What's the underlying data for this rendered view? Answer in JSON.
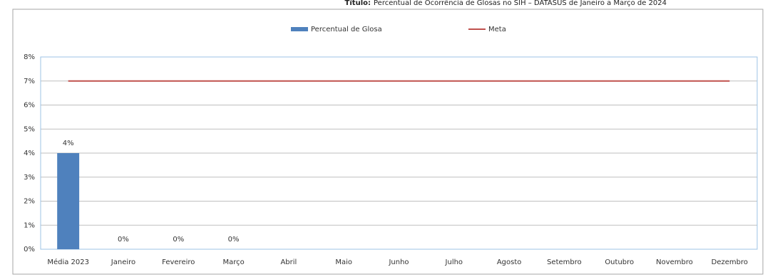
{
  "chart_data": {
    "type": "bar",
    "title_label": "Título:",
    "title": "Percentual de Ocorrência de Glosas no SIH – DATASUS de Janeiro a Março de 2024",
    "categories": [
      "Média 2023",
      "Janeiro",
      "Fevereiro",
      "Março",
      "Abril",
      "Maio",
      "Junho",
      "Julho",
      "Agosto",
      "Setembro",
      "Outubro",
      "Novembro",
      "Dezembro"
    ],
    "series": [
      {
        "name": "Percentual de Glosa",
        "type": "bar",
        "color": "#4f81bd",
        "values": [
          4,
          0,
          0,
          0,
          null,
          null,
          null,
          null,
          null,
          null,
          null,
          null,
          null
        ],
        "value_labels": [
          "4%",
          "0%",
          "0%",
          "0%",
          null,
          null,
          null,
          null,
          null,
          null,
          null,
          null,
          null
        ]
      },
      {
        "name": "Meta",
        "type": "line",
        "color": "#c0504d",
        "values": [
          7,
          7,
          7,
          7,
          7,
          7,
          7,
          7,
          7,
          7,
          7,
          7,
          7
        ]
      }
    ],
    "ylim": [
      0,
      8
    ],
    "yticks": [
      {
        "value": 0,
        "label": "0%"
      },
      {
        "value": 1,
        "label": "1%"
      },
      {
        "value": 2,
        "label": "2%"
      },
      {
        "value": 3,
        "label": "3%"
      },
      {
        "value": 4,
        "label": "4%"
      },
      {
        "value": 5,
        "label": "5%"
      },
      {
        "value": 6,
        "label": "6%"
      },
      {
        "value": 7,
        "label": "7%"
      },
      {
        "value": 8,
        "label": "8%"
      }
    ],
    "grid": true,
    "legend": "top"
  }
}
